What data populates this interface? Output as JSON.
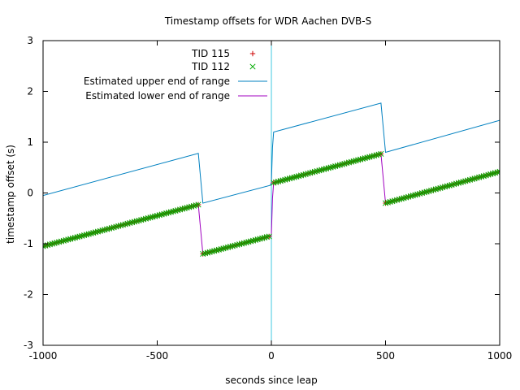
{
  "chart_data": {
    "type": "line",
    "title": "Timestamp offsets for WDR Aachen DVB-S",
    "xlabel": "seconds since leap",
    "ylabel": "timestamp offset (s)",
    "xlim": [
      -1000,
      1000
    ],
    "ylim": [
      -3,
      3
    ],
    "x_ticks": [
      -1000,
      -500,
      0,
      500,
      1000
    ],
    "y_ticks": [
      -3,
      -2,
      -1,
      0,
      1,
      2,
      3
    ],
    "x_tick_labels": [
      "-1000",
      "-500",
      "0",
      "500",
      "1000"
    ],
    "y_tick_labels": [
      "-3",
      "-2",
      "-1",
      "0",
      "1",
      "2",
      "3"
    ],
    "grid": false,
    "legend_position": "top-center",
    "vertical_marker_x": 0,
    "series": [
      {
        "name": "TID 115",
        "style": "points",
        "marker": "plus",
        "color": "#cc0000",
        "segments": [
          {
            "x": [
              -1000,
              -320
            ],
            "y": [
              -1.05,
              -0.23
            ]
          },
          {
            "x": [
              -300,
              -5
            ],
            "y": [
              -1.2,
              -0.85
            ]
          },
          {
            "x": [
              10,
              480
            ],
            "y": [
              0.2,
              0.77
            ]
          },
          {
            "x": [
              500,
              1000
            ],
            "y": [
              -0.2,
              0.42
            ]
          }
        ]
      },
      {
        "name": "TID 112",
        "style": "points",
        "marker": "cross",
        "color": "#00aa00",
        "segments": [
          {
            "x": [
              -1000,
              -320
            ],
            "y": [
              -1.05,
              -0.23
            ]
          },
          {
            "x": [
              -300,
              -5
            ],
            "y": [
              -1.2,
              -0.85
            ]
          },
          {
            "x": [
              10,
              480
            ],
            "y": [
              0.2,
              0.77
            ]
          },
          {
            "x": [
              500,
              1000
            ],
            "y": [
              -0.2,
              0.42
            ]
          }
        ]
      },
      {
        "name": "Estimated upper end of range",
        "style": "line",
        "color": "#0080c0",
        "points": [
          [
            -1000,
            -0.05
          ],
          [
            -320,
            0.78
          ],
          [
            -300,
            -0.2
          ],
          [
            -5,
            0.15
          ],
          [
            0,
            0.2
          ],
          [
            5,
            0.9
          ],
          [
            10,
            1.2
          ],
          [
            480,
            1.77
          ],
          [
            500,
            0.8
          ],
          [
            1000,
            1.43
          ]
        ]
      },
      {
        "name": "Estimated lower end of range",
        "style": "line",
        "color": "#a000c0",
        "points": [
          [
            -1000,
            -1.05
          ],
          [
            -320,
            -0.23
          ],
          [
            -300,
            -1.2
          ],
          [
            -5,
            -0.85
          ],
          [
            0,
            -0.82
          ],
          [
            5,
            -0.1
          ],
          [
            10,
            0.2
          ],
          [
            480,
            0.77
          ],
          [
            500,
            -0.2
          ],
          [
            1000,
            0.42
          ]
        ]
      }
    ]
  }
}
